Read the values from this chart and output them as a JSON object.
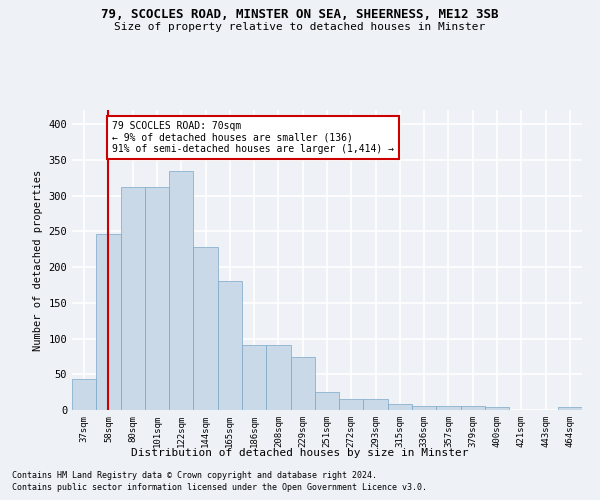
{
  "title_line1": "79, SCOCLES ROAD, MINSTER ON SEA, SHEERNESS, ME12 3SB",
  "title_line2": "Size of property relative to detached houses in Minster",
  "xlabel": "Distribution of detached houses by size in Minster",
  "ylabel": "Number of detached properties",
  "categories": [
    "37sqm",
    "58sqm",
    "80sqm",
    "101sqm",
    "122sqm",
    "144sqm",
    "165sqm",
    "186sqm",
    "208sqm",
    "229sqm",
    "251sqm",
    "272sqm",
    "293sqm",
    "315sqm",
    "336sqm",
    "357sqm",
    "379sqm",
    "400sqm",
    "421sqm",
    "443sqm",
    "464sqm"
  ],
  "values": [
    44,
    246,
    312,
    312,
    335,
    228,
    180,
    91,
    91,
    74,
    25,
    15,
    15,
    9,
    5,
    5,
    5,
    4,
    0,
    0,
    4
  ],
  "bar_color": "#c9d9e8",
  "bar_edge_color": "#7aa6c8",
  "vline_x": 1.0,
  "vline_color": "#cc0000",
  "annotation_text": "79 SCOCLES ROAD: 70sqm\n← 9% of detached houses are smaller (136)\n91% of semi-detached houses are larger (1,414) →",
  "annotation_box_color": "#ffffff",
  "annotation_box_edge": "#cc0000",
  "ylim": [
    0,
    420
  ],
  "yticks": [
    0,
    50,
    100,
    150,
    200,
    250,
    300,
    350,
    400
  ],
  "footer_line1": "Contains HM Land Registry data © Crown copyright and database right 2024.",
  "footer_line2": "Contains public sector information licensed under the Open Government Licence v3.0.",
  "bg_color": "#eef2f7",
  "grid_color": "#ffffff"
}
